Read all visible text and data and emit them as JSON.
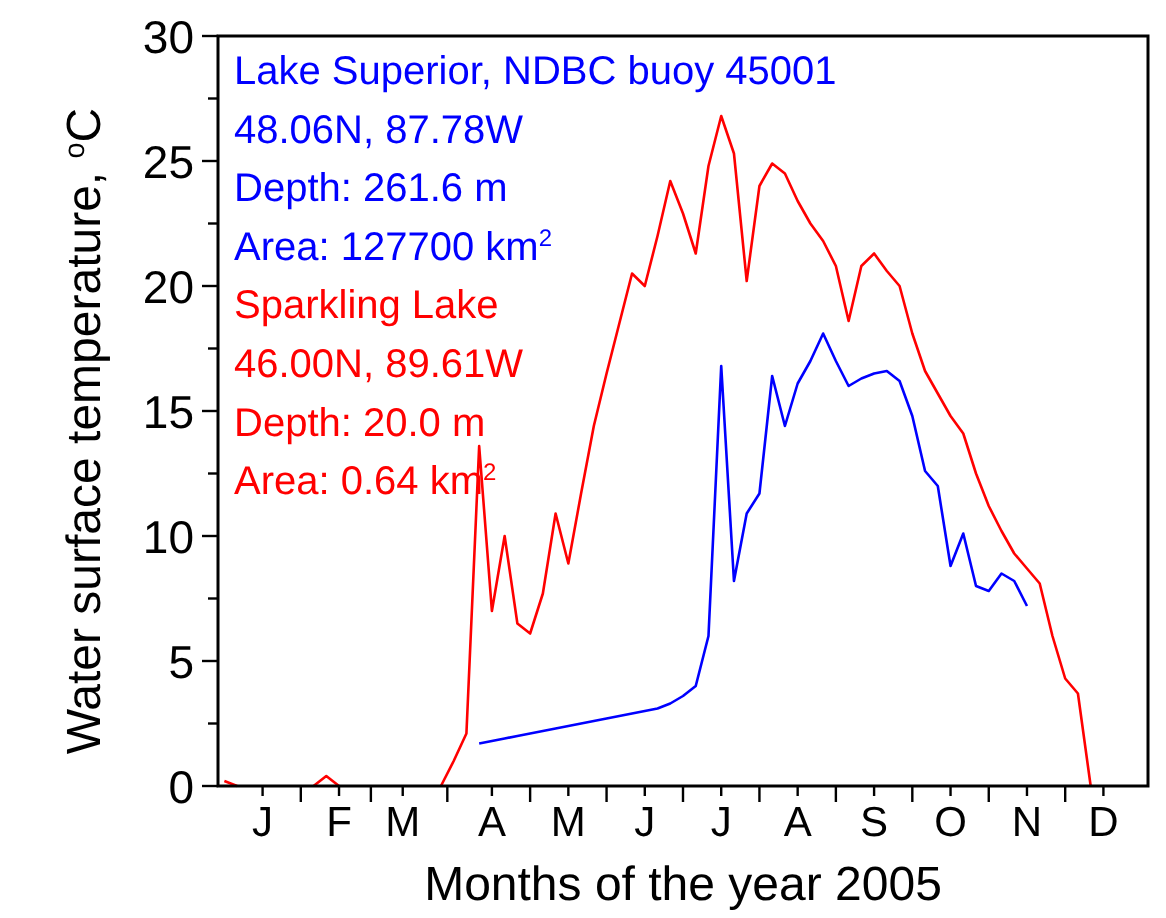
{
  "chart_data": {
    "type": "line",
    "xlabel": "Months of the year 2005",
    "ylabel": "Water surface temperature, $^{o}$C",
    "categories": [
      null,
      null,
      null,
      "J",
      null,
      null,
      null,
      null,
      null,
      "F",
      null,
      null,
      null,
      null,
      "M",
      null,
      null,
      null,
      null,
      null,
      null,
      "A",
      null,
      null,
      null,
      null,
      null,
      "M",
      null,
      null,
      null,
      null,
      null,
      "J",
      null,
      null,
      null,
      null,
      null,
      "J",
      null,
      null,
      null,
      null,
      null,
      "A",
      null,
      null,
      null,
      null,
      null,
      "S",
      null,
      null,
      null,
      null,
      null,
      "O",
      null,
      null,
      null,
      null,
      null,
      "N",
      null,
      null,
      null,
      null,
      null,
      "D",
      null,
      null,
      null
    ],
    "ylim": [
      0,
      30
    ],
    "yticks": [
      0,
      {
        "value": 2.5,
        "label": null
      },
      5,
      {
        "value": 7.5,
        "label": null
      },
      10,
      {
        "value": 12.5,
        "label": null
      },
      15,
      {
        "value": 17.5,
        "label": null
      },
      20,
      {
        "value": 22.5,
        "label": null
      },
      25,
      {
        "value": 27.5,
        "label": null
      },
      30
    ],
    "grid": false,
    "legend": "top left",
    "marker": "none",
    "line_style": "solid",
    "annotations": [
      "48.06N, 87.78W",
      "Depth: 261.6 m",
      "Area: 127700 km$^{2}$",
      "46.00N, 89.61W",
      "Depth: 20.0 m",
      "Area: 0.64 km$^{2}$"
    ],
    "series": [
      {
        "name": "Lake Superior, NDBC buoy 45001",
        "color": "#0000ff",
        "values": [
          null,
          null,
          null,
          null,
          null,
          null,
          null,
          null,
          null,
          null,
          null,
          null,
          null,
          null,
          null,
          null,
          null,
          null,
          null,
          null,
          1.7,
          1.8,
          1.9,
          2.0,
          2.1,
          2.2,
          2.3,
          2.4,
          2.5,
          2.6,
          2.7,
          2.8,
          2.9,
          3.0,
          3.1,
          3.3,
          3.6,
          4.0,
          6,
          16.8,
          8.2,
          10.9,
          11.7,
          16.4,
          14.4,
          16.1,
          17,
          18.1,
          17,
          16,
          16.3,
          16.5,
          16.6,
          16.2,
          14.8,
          12.6,
          12,
          8.8,
          10.1,
          8,
          7.8,
          8.5,
          8.2,
          7.2,
          null,
          null,
          null,
          null,
          null,
          null,
          null,
          null,
          null
        ]
      },
      {
        "name": "Sparkling Lake",
        "color": "#ff0000",
        "values": [
          0.2,
          0,
          null,
          null,
          null,
          null,
          null,
          0,
          0.4,
          0,
          null,
          null,
          null,
          null,
          null,
          null,
          null,
          0,
          1.0,
          2.1,
          13.6,
          7,
          10,
          6.5,
          6.1,
          7.7,
          10.9,
          8.9,
          11.7,
          14.4,
          16.5,
          18.5,
          20.5,
          20,
          22,
          24.2,
          22.9,
          21.3,
          24.8,
          26.8,
          25.3,
          20.2,
          24,
          24.9,
          24.5,
          23.4,
          22.5,
          21.8,
          20.8,
          18.6,
          20.8,
          21.3,
          20.6,
          20,
          18.1,
          16.6,
          15.7,
          14.8,
          14.1,
          12.5,
          11.2,
          10.2,
          9.3,
          8.7,
          8.1,
          6,
          4.3,
          3.7,
          0,
          null,
          null,
          null,
          null
        ]
      }
    ]
  }
}
